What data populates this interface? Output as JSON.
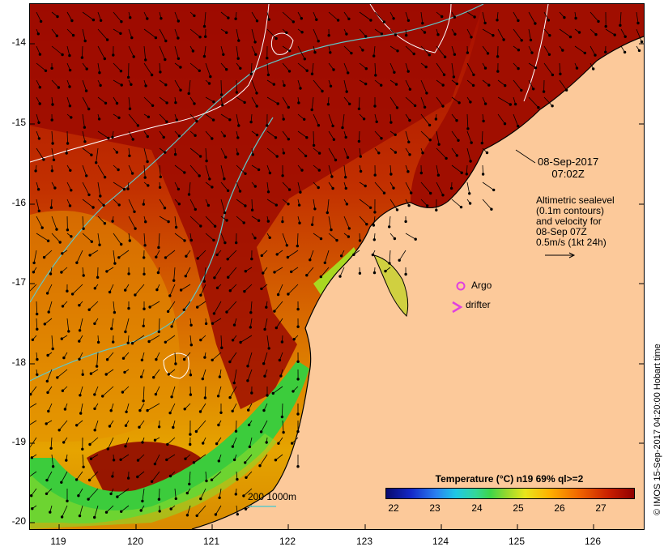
{
  "map": {
    "lat_ticks": [
      "-14",
      "-15",
      "-16",
      "-17",
      "-18",
      "-19",
      "-20"
    ],
    "lon_ticks": [
      "119",
      "120",
      "121",
      "122",
      "123",
      "124",
      "125",
      "126"
    ],
    "date_line1": "08-Sep-2017",
    "date_line2": "07:02Z",
    "altimetry_lines": [
      "Altimetric sealevel",
      "(0.1m contours)",
      "and velocity for",
      "08-Sep 07Z",
      "0.5m/s (1kt 24h)"
    ],
    "legend_argo": "Argo",
    "legend_drifter": "drifter",
    "colorbar_title": "Temperature (°C) n19 69% ql>=2",
    "colorbar_ticks": [
      "22",
      "23",
      "24",
      "25",
      "26",
      "27"
    ],
    "depth_scale_label": "200  1000m",
    "copyright": "© IMOS 15-Sep-2017 04:20:00 Hobart time",
    "colors": {
      "land": "#fcc99a",
      "sst_hot": "#9c0a00",
      "sst_warm": "#c83200",
      "sst_mid": "#e07800",
      "sst_cool": "#e8b000",
      "sst_cold": "#3ccc3c",
      "contour_200m": "#5fc8c8",
      "sealevel_contour": "#ffffff",
      "argo": "#e040e0",
      "drifter": "#e040e0"
    }
  }
}
